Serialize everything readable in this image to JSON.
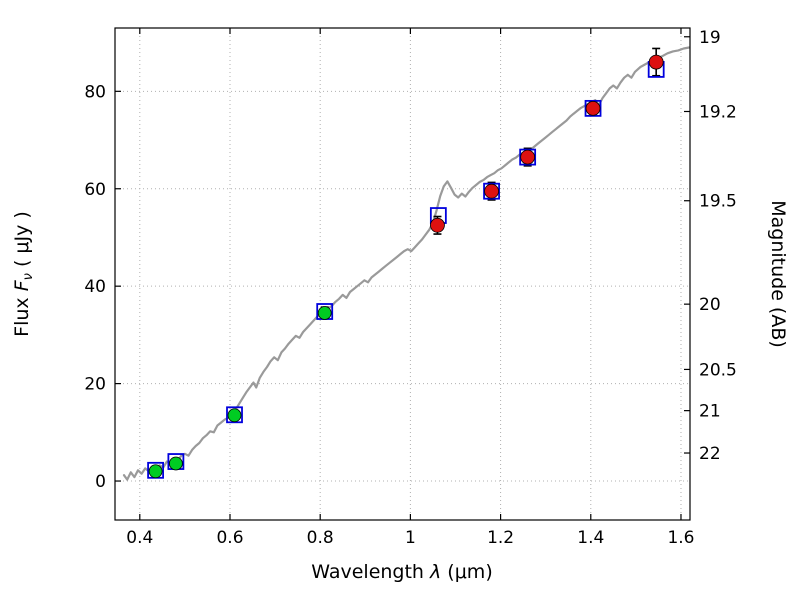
{
  "chart_data": {
    "type": "line",
    "title": "",
    "xlabel": "Wavelength λ (μm)",
    "ylabel": "Flux Fν ( μJy )",
    "ylabel_right": "Magnitude (AB)",
    "label_parts": {
      "x_prefix": "Wavelength ",
      "x_symbol": "λ",
      "x_suffix": " (μm)",
      "y_prefix": "Flux  ",
      "y_symbol": "F",
      "y_sub": "ν",
      "y_suffix": " ( μJy )",
      "right_label": "Magnitude (AB)"
    },
    "xlim": [
      0.345,
      1.62
    ],
    "ylim": [
      -8,
      93
    ],
    "grid": true,
    "legend": "none",
    "xticks": [
      {
        "v": 0.4,
        "l": "0.4"
      },
      {
        "v": 0.6,
        "l": "0.6"
      },
      {
        "v": 0.8,
        "l": "0.8"
      },
      {
        "v": 1.0,
        "l": "1"
      },
      {
        "v": 1.2,
        "l": "1.2"
      },
      {
        "v": 1.4,
        "l": "1.4"
      },
      {
        "v": 1.6,
        "l": "1.6"
      }
    ],
    "yticks": [
      {
        "v": 0,
        "l": "0"
      },
      {
        "v": 20,
        "l": "20"
      },
      {
        "v": 40,
        "l": "40"
      },
      {
        "v": 60,
        "l": "60"
      },
      {
        "v": 80,
        "l": "80"
      }
    ],
    "right_ticks": [
      {
        "flux": 91.2,
        "l": "19"
      },
      {
        "flux": 75.86,
        "l": "19.2"
      },
      {
        "flux": 57.54,
        "l": "19.5"
      },
      {
        "flux": 36.31,
        "l": "20"
      },
      {
        "flux": 22.91,
        "l": "20.5"
      },
      {
        "flux": 14.45,
        "l": "21"
      },
      {
        "flux": 5.75,
        "l": "22"
      }
    ],
    "colors": {
      "spectrum": "#9a9a9a",
      "model_squares": "#0000dd",
      "observed_green": "#00cc22",
      "observed_red": "#dd1111",
      "errorbar": "#000000",
      "grid": "#b0b0b0",
      "frame": "#000000"
    },
    "series": [
      {
        "name": "model-spectrum",
        "type": "line",
        "points": [
          [
            0.365,
            1.2
          ],
          [
            0.372,
            0.3
          ],
          [
            0.38,
            1.8
          ],
          [
            0.388,
            0.8
          ],
          [
            0.396,
            2.2
          ],
          [
            0.404,
            1.5
          ],
          [
            0.412,
            2.6
          ],
          [
            0.42,
            2.0
          ],
          [
            0.428,
            3.0
          ],
          [
            0.436,
            2.4
          ],
          [
            0.444,
            3.2
          ],
          [
            0.452,
            2.8
          ],
          [
            0.46,
            4.0
          ],
          [
            0.468,
            3.5
          ],
          [
            0.476,
            4.6
          ],
          [
            0.484,
            4.2
          ],
          [
            0.492,
            5.2
          ],
          [
            0.5,
            5.6
          ],
          [
            0.508,
            5.2
          ],
          [
            0.516,
            6.4
          ],
          [
            0.524,
            7.2
          ],
          [
            0.532,
            7.8
          ],
          [
            0.54,
            8.8
          ],
          [
            0.548,
            9.4
          ],
          [
            0.556,
            10.2
          ],
          [
            0.564,
            10.0
          ],
          [
            0.572,
            11.4
          ],
          [
            0.58,
            12.0
          ],
          [
            0.588,
            12.6
          ],
          [
            0.596,
            13.0
          ],
          [
            0.604,
            13.4
          ],
          [
            0.612,
            14.6
          ],
          [
            0.62,
            15.8
          ],
          [
            0.628,
            17.0
          ],
          [
            0.636,
            18.2
          ],
          [
            0.644,
            19.2
          ],
          [
            0.652,
            20.2
          ],
          [
            0.658,
            19.2
          ],
          [
            0.666,
            21.2
          ],
          [
            0.674,
            22.4
          ],
          [
            0.682,
            23.4
          ],
          [
            0.69,
            24.6
          ],
          [
            0.698,
            25.4
          ],
          [
            0.706,
            24.8
          ],
          [
            0.714,
            26.4
          ],
          [
            0.722,
            27.2
          ],
          [
            0.73,
            28.2
          ],
          [
            0.738,
            29.0
          ],
          [
            0.746,
            29.8
          ],
          [
            0.754,
            29.4
          ],
          [
            0.762,
            30.6
          ],
          [
            0.77,
            31.4
          ],
          [
            0.778,
            32.2
          ],
          [
            0.786,
            33.0
          ],
          [
            0.794,
            33.8
          ],
          [
            0.802,
            34.2
          ],
          [
            0.81,
            34.8
          ],
          [
            0.818,
            35.4
          ],
          [
            0.826,
            36.0
          ],
          [
            0.834,
            36.8
          ],
          [
            0.842,
            37.4
          ],
          [
            0.85,
            38.2
          ],
          [
            0.858,
            37.6
          ],
          [
            0.866,
            38.8
          ],
          [
            0.874,
            39.4
          ],
          [
            0.882,
            40.0
          ],
          [
            0.89,
            40.6
          ],
          [
            0.898,
            41.2
          ],
          [
            0.906,
            40.8
          ],
          [
            0.914,
            41.8
          ],
          [
            0.922,
            42.4
          ],
          [
            0.93,
            43.0
          ],
          [
            0.938,
            43.6
          ],
          [
            0.946,
            44.2
          ],
          [
            0.954,
            44.8
          ],
          [
            0.962,
            45.4
          ],
          [
            0.97,
            46.0
          ],
          [
            0.978,
            46.6
          ],
          [
            0.986,
            47.2
          ],
          [
            0.994,
            47.6
          ],
          [
            1.002,
            47.2
          ],
          [
            1.01,
            48.0
          ],
          [
            1.018,
            48.8
          ],
          [
            1.026,
            49.6
          ],
          [
            1.034,
            50.6
          ],
          [
            1.042,
            51.6
          ],
          [
            1.05,
            53.0
          ],
          [
            1.058,
            55.5
          ],
          [
            1.066,
            58.5
          ],
          [
            1.074,
            60.5
          ],
          [
            1.082,
            61.5
          ],
          [
            1.09,
            60.2
          ],
          [
            1.098,
            58.8
          ],
          [
            1.106,
            58.2
          ],
          [
            1.114,
            59.0
          ],
          [
            1.122,
            58.4
          ],
          [
            1.13,
            59.4
          ],
          [
            1.138,
            60.2
          ],
          [
            1.146,
            60.8
          ],
          [
            1.154,
            61.4
          ],
          [
            1.162,
            61.8
          ],
          [
            1.17,
            62.4
          ],
          [
            1.178,
            62.8
          ],
          [
            1.186,
            63.2
          ],
          [
            1.194,
            63.8
          ],
          [
            1.202,
            64.2
          ],
          [
            1.21,
            64.8
          ],
          [
            1.218,
            65.4
          ],
          [
            1.226,
            66.0
          ],
          [
            1.234,
            66.4
          ],
          [
            1.242,
            67.0
          ],
          [
            1.25,
            67.4
          ],
          [
            1.258,
            67.0
          ],
          [
            1.266,
            68.0
          ],
          [
            1.274,
            68.6
          ],
          [
            1.282,
            69.2
          ],
          [
            1.29,
            69.8
          ],
          [
            1.298,
            70.4
          ],
          [
            1.306,
            71.0
          ],
          [
            1.314,
            71.6
          ],
          [
            1.322,
            72.2
          ],
          [
            1.33,
            72.8
          ],
          [
            1.338,
            73.4
          ],
          [
            1.346,
            74.0
          ],
          [
            1.354,
            74.8
          ],
          [
            1.362,
            75.4
          ],
          [
            1.37,
            76.0
          ],
          [
            1.378,
            76.6
          ],
          [
            1.386,
            77.0
          ],
          [
            1.394,
            77.4
          ],
          [
            1.402,
            77.8
          ],
          [
            1.41,
            78.2
          ],
          [
            1.418,
            77.2
          ],
          [
            1.426,
            78.6
          ],
          [
            1.434,
            79.6
          ],
          [
            1.442,
            80.6
          ],
          [
            1.45,
            81.2
          ],
          [
            1.458,
            80.6
          ],
          [
            1.466,
            81.8
          ],
          [
            1.474,
            82.8
          ],
          [
            1.482,
            83.4
          ],
          [
            1.49,
            82.8
          ],
          [
            1.498,
            84.0
          ],
          [
            1.51,
            85.0
          ],
          [
            1.522,
            85.6
          ],
          [
            1.534,
            86.2
          ],
          [
            1.546,
            86.8
          ],
          [
            1.558,
            87.2
          ],
          [
            1.57,
            87.8
          ],
          [
            1.582,
            88.2
          ],
          [
            1.594,
            88.4
          ],
          [
            1.606,
            88.8
          ],
          [
            1.618,
            89.0
          ]
        ]
      },
      {
        "name": "model-photometry-squares",
        "type": "scatter-square-open",
        "points": [
          [
            0.435,
            2.2
          ],
          [
            0.48,
            4.0
          ],
          [
            0.61,
            13.6
          ],
          [
            0.81,
            34.8
          ],
          [
            1.062,
            54.5
          ],
          [
            1.18,
            59.5
          ],
          [
            1.26,
            66.5
          ],
          [
            1.405,
            76.5
          ],
          [
            1.545,
            84.5
          ]
        ]
      },
      {
        "name": "observed-photometry-green",
        "type": "scatter-circle-err",
        "points": [
          [
            0.435,
            2.0,
            1.0
          ],
          [
            0.48,
            3.6,
            1.0
          ],
          [
            0.61,
            13.5,
            1.0
          ],
          [
            0.81,
            34.5,
            1.2
          ]
        ]
      },
      {
        "name": "observed-photometry-red",
        "type": "scatter-circle-err",
        "points": [
          [
            1.06,
            52.5,
            1.8
          ],
          [
            1.18,
            59.5,
            1.8
          ],
          [
            1.26,
            66.5,
            1.8
          ],
          [
            1.405,
            76.5,
            1.5
          ],
          [
            1.545,
            86.0,
            2.8
          ]
        ]
      }
    ]
  }
}
